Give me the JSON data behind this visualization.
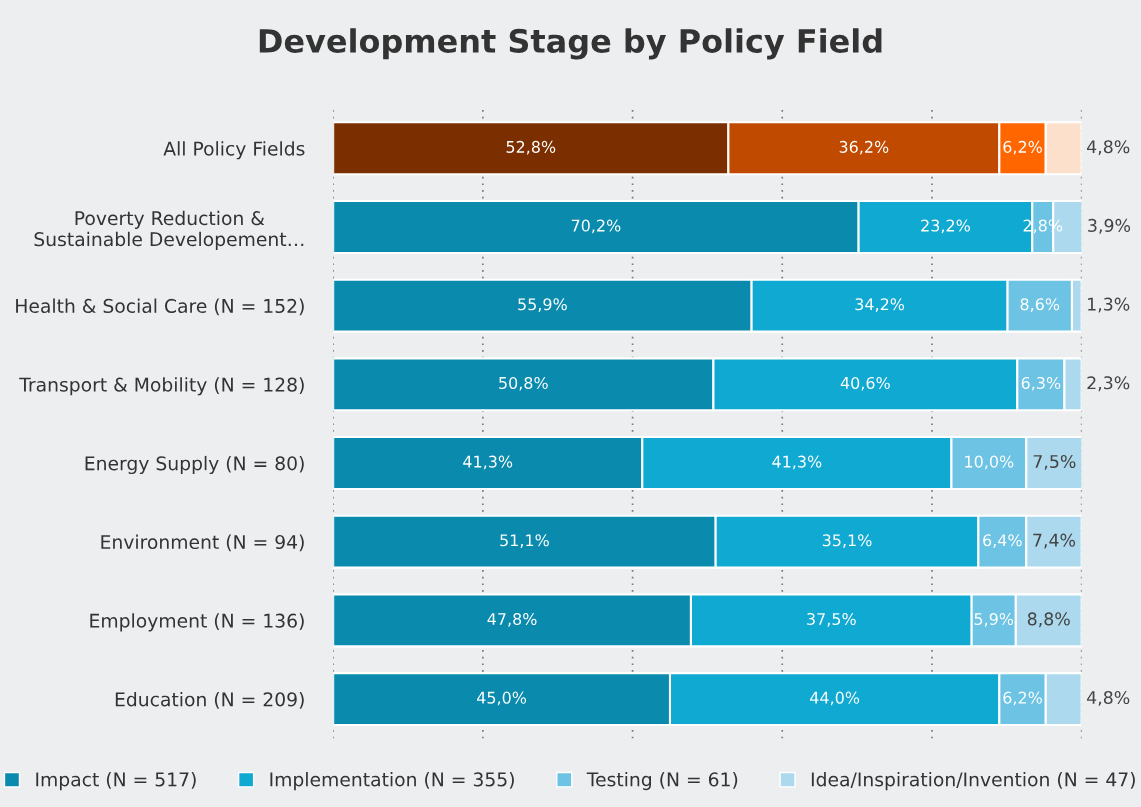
{
  "chart_data": {
    "type": "bar",
    "orientation": "horizontal",
    "stacked": true,
    "title": "Development Stage by Policy Field",
    "categories": [
      "All Policy Fields",
      "Poverty Reduction &\nSustainable Developement…",
      "Health & Social Care (N = 152)",
      "Transport & Mobility (N = 128)",
      "Energy Supply (N = 80)",
      "Environment (N = 94)",
      "Employment (N = 136)",
      "Education (N = 209)"
    ],
    "series": [
      {
        "name": "Impact (N = 517)",
        "color": "#0a8bad",
        "colors": [
          "#7b2e00",
          "#0a8bad",
          "#0a8bad",
          "#0a8bad",
          "#0a8bad",
          "#0a8bad",
          "#0a8bad",
          "#0a8bad"
        ],
        "values": [
          52.8,
          70.2,
          55.9,
          50.8,
          41.3,
          51.1,
          47.8,
          45.0
        ],
        "value_labels": [
          "52,8%",
          "70,2%",
          "55,9%",
          "50,8%",
          "41,3%",
          "51,1%",
          "47,8%",
          "45,0%"
        ]
      },
      {
        "name": "Implementation (N = 355)",
        "color": "#10a9d2",
        "colors": [
          "#c04a00",
          "#10a9d2",
          "#10a9d2",
          "#10a9d2",
          "#10a9d2",
          "#10a9d2",
          "#10a9d2",
          "#10a9d2"
        ],
        "values": [
          36.2,
          23.2,
          34.2,
          40.6,
          41.3,
          35.1,
          37.5,
          44.0
        ],
        "value_labels": [
          "36,2%",
          "23,2%",
          "34,2%",
          "40,6%",
          "41,3%",
          "35,1%",
          "37,5%",
          "44,0%"
        ]
      },
      {
        "name": "Testing (N = 61)",
        "color": "#6cc3e3",
        "colors": [
          "#ff6600",
          "#6cc3e3",
          "#6cc3e3",
          "#6cc3e3",
          "#6cc3e3",
          "#6cc3e3",
          "#6cc3e3",
          "#6cc3e3"
        ],
        "values": [
          6.2,
          2.8,
          8.6,
          6.3,
          10.0,
          6.4,
          5.9,
          6.2
        ],
        "value_labels": [
          "6,2%",
          "2,8%",
          "8,6%",
          "6,3%",
          "10,0%",
          "6,4%",
          "5,9%",
          "6,2%"
        ]
      },
      {
        "name": "Idea/Inspiration/Invention (N = 47)",
        "color": "#acd9ed",
        "colors": [
          "#fde0cc",
          "#acd9ed",
          "#acd9ed",
          "#acd9ed",
          "#acd9ed",
          "#acd9ed",
          "#acd9ed",
          "#acd9ed"
        ],
        "values": [
          4.8,
          3.9,
          1.3,
          2.3,
          7.5,
          7.4,
          8.8,
          4.8
        ],
        "value_labels": [
          "4,8%",
          "3,9%",
          "1,3%",
          "2,3%",
          "7,5%",
          "7,4%",
          "8,8%",
          "4,8%"
        ]
      }
    ],
    "xlim": [
      0,
      100
    ],
    "xticks": [
      {
        "value": 0,
        "label": null
      },
      {
        "value": 20,
        "label": null
      },
      {
        "value": 40,
        "label": null
      },
      {
        "value": 60,
        "label": null
      },
      {
        "value": 80,
        "label": null
      },
      {
        "value": 100,
        "label": null
      }
    ],
    "tick_labels": "y",
    "grid": "x",
    "legend": "bottom"
  }
}
